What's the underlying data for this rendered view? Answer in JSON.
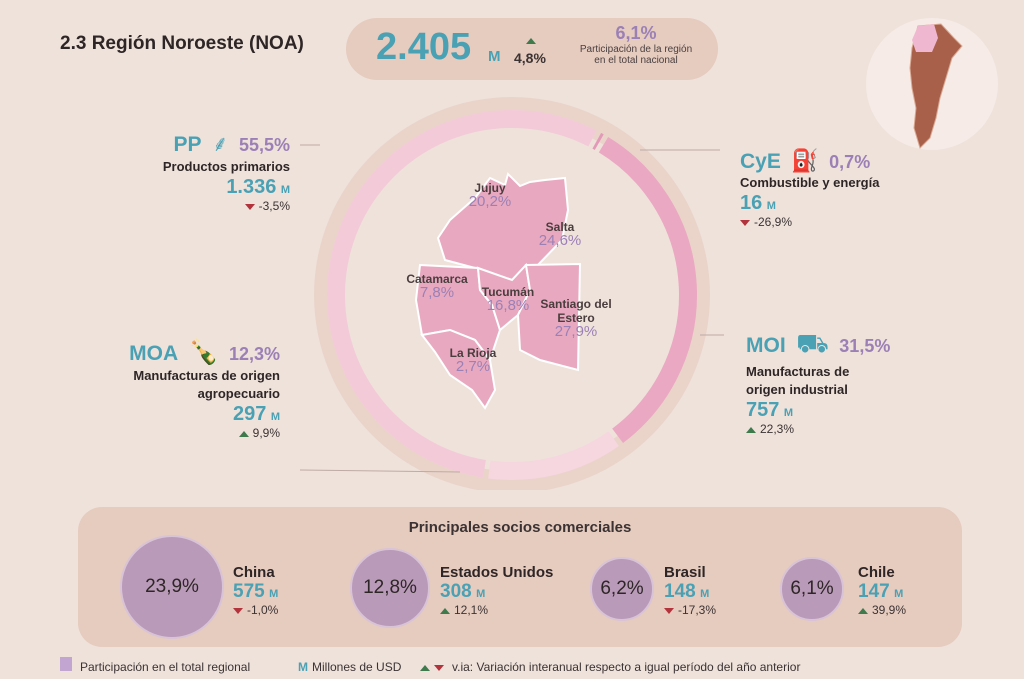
{
  "title": "2.3 Región Noroeste (NOA)",
  "summary": {
    "total": "2.405",
    "unit": "M",
    "variation": "4,8%",
    "variation_dir": "up",
    "share": "6,1%",
    "share_label_1": "Participación de la región",
    "share_label_2": "en el total nacional"
  },
  "categories": [
    {
      "code": "PP",
      "pct": "55,5%",
      "share": 55.5,
      "name": "Productos primarios",
      "value": "1.336",
      "unit": "M",
      "variation": "-3,5%",
      "dir": "down",
      "icon": "wheat-icon",
      "color": "#f3cbd8"
    },
    {
      "code": "CyE",
      "pct": "0,7%",
      "share": 0.7,
      "name": "Combustible y energía",
      "value": "16",
      "unit": "M",
      "variation": "-26,9%",
      "dir": "down",
      "icon": "fuel-drop-icon",
      "color": "#e39ab8"
    },
    {
      "code": "MOI",
      "pct": "31,5%",
      "share": 31.5,
      "name_1": "Manufacturas de",
      "name_2": "origen industrial",
      "value": "757",
      "unit": "M",
      "variation": "22,3%",
      "dir": "up",
      "icon": "truck-icon",
      "color": "#eaa8c2"
    },
    {
      "code": "MOA",
      "pct": "12,3%",
      "share": 12.3,
      "name_1": "Manufacturas de origen",
      "name_2": "agropecuario",
      "value": "297",
      "unit": "M",
      "variation": "9,9%",
      "dir": "up",
      "icon": "bottle-icon",
      "color": "#f6d6df"
    }
  ],
  "provinces": [
    {
      "name": "Jujuy",
      "pct": "20,2%"
    },
    {
      "name": "Salta",
      "pct": "24,6%"
    },
    {
      "name": "Catamarca",
      "pct": "7,8%"
    },
    {
      "name": "Tucumán",
      "pct": "16,8%"
    },
    {
      "name_1": "Santiago del",
      "name_2": "Estero",
      "pct": "27,9%"
    },
    {
      "name": "La Rioja",
      "pct": "2,7%"
    }
  ],
  "partners": {
    "title": "Principales socios comerciales",
    "items": [
      {
        "name": "China",
        "share": "23,9%",
        "value": "575",
        "unit": "M",
        "variation": "-1,0%",
        "dir": "down"
      },
      {
        "name": "Estados Unidos",
        "share": "12,8%",
        "value": "308",
        "unit": "M",
        "variation": "12,1%",
        "dir": "up"
      },
      {
        "name": "Brasil",
        "share": "6,2%",
        "value": "148",
        "unit": "M",
        "variation": "-17,3%",
        "dir": "down"
      },
      {
        "name": "Chile",
        "share": "6,1%",
        "value": "147",
        "unit": "M",
        "variation": "39,9%",
        "dir": "up"
      }
    ]
  },
  "legend": {
    "share": "Participación en el total regional",
    "m_symbol": "M",
    "m_label": "Millones de USD",
    "via_label": "v.ia: Variación interanual respecto a igual período del año anterior"
  }
}
